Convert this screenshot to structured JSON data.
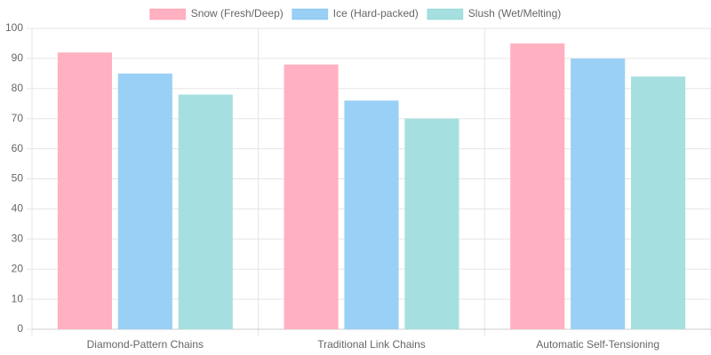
{
  "chart_data": {
    "type": "bar",
    "categories": [
      "Diamond-Pattern Chains",
      "Traditional Link Chains",
      "Automatic Self-Tensioning"
    ],
    "series": [
      {
        "name": "Snow (Fresh/Deep)",
        "color": "#ffb1c1",
        "border": "#ff6384",
        "values": [
          92,
          88,
          95
        ]
      },
      {
        "name": "Ice (Hard-packed)",
        "color": "#9ad0f5",
        "border": "#36a2eb",
        "values": [
          85,
          76,
          90
        ]
      },
      {
        "name": "Slush (Wet/Melting)",
        "color": "#a5dfdf",
        "border": "#4bc0c0",
        "values": [
          78,
          70,
          84
        ]
      }
    ],
    "ylim": [
      0,
      100
    ],
    "yticks": [
      0,
      10,
      20,
      30,
      40,
      50,
      60,
      70,
      80,
      90,
      100
    ],
    "grid": true,
    "legend": "top"
  }
}
